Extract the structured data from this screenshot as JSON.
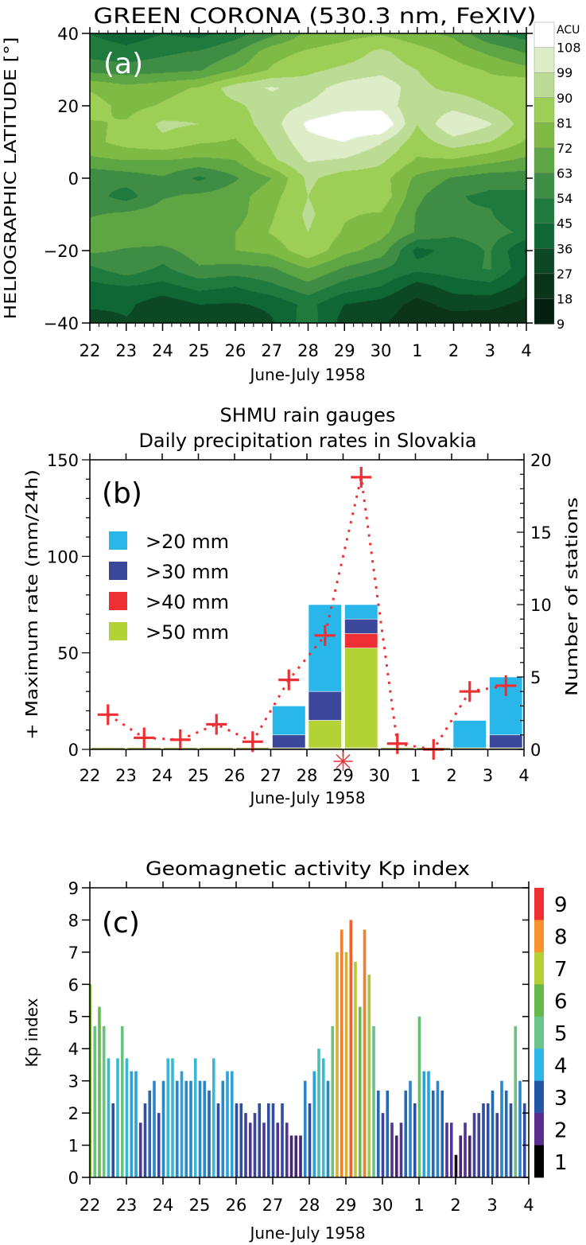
{
  "chart_data": [
    {
      "type": "heatmap",
      "panel_label": "(a)",
      "title": "GREEN CORONA (530.3 nm, FeXIV)",
      "xlabel": "June-July 1958",
      "ylabel": "HELIOGRAPHIC LATITUDE [°]",
      "x_tick_labels": [
        "22",
        "23",
        "24",
        "25",
        "26",
        "27",
        "28",
        "29",
        "30",
        "1",
        "2",
        "3",
        "4"
      ],
      "y_ticks": [
        40,
        20,
        0,
        -20,
        -40
      ],
      "y_tick_labels": [
        "40",
        "20",
        "0",
        "−20",
        "−40"
      ],
      "ylim": [
        -40,
        40
      ],
      "colorbar": {
        "unit": "ACU",
        "levels": [
          9,
          18,
          27,
          36,
          45,
          54,
          63,
          72,
          81,
          90,
          99,
          108
        ],
        "level_labels": [
          "108",
          "99",
          "90",
          "81",
          "72",
          "63",
          "54",
          "45",
          "36",
          "27",
          "18",
          "9"
        ],
        "colors": [
          "#000a05",
          "#04200f",
          "#0c3419",
          "#0d4825",
          "#0e6734",
          "#1f7a3d",
          "#3f8d45",
          "#5ea544",
          "#7fba45",
          "#9dcf57",
          "#bcdc95",
          "#dcedc8",
          "#ffffff"
        ]
      },
      "latitudes": [
        40,
        35,
        30,
        25,
        20,
        15,
        10,
        5,
        0,
        -5,
        -10,
        -15,
        -20,
        -25,
        -30,
        -35,
        -40
      ],
      "values": [
        [
          45,
          40,
          45,
          42,
          50,
          60,
          75,
          78,
          80,
          75,
          70,
          55,
          50
        ],
        [
          50,
          48,
          52,
          55,
          62,
          78,
          82,
          85,
          92,
          85,
          78,
          70,
          62
        ],
        [
          60,
          58,
          60,
          62,
          72,
          82,
          88,
          92,
          95,
          90,
          85,
          80,
          75
        ],
        [
          80,
          75,
          78,
          82,
          95,
          100,
          95,
          103,
          108,
          92,
          88,
          85,
          90
        ],
        [
          85,
          78,
          82,
          86,
          88,
          95,
          100,
          105,
          105,
          92,
          96,
          90,
          82
        ],
        [
          80,
          82,
          92,
          90,
          85,
          95,
          110,
          115,
          118,
          90,
          108,
          100,
          85
        ],
        [
          78,
          85,
          88,
          82,
          80,
          92,
          105,
          108,
          100,
          85,
          95,
          90,
          80
        ],
        [
          70,
          72,
          72,
          70,
          72,
          88,
          100,
          98,
          92,
          80,
          80,
          75,
          70
        ],
        [
          55,
          58,
          62,
          52,
          62,
          72,
          92,
          85,
          85,
          70,
          62,
          58,
          58
        ],
        [
          58,
          50,
          62,
          65,
          68,
          78,
          90,
          82,
          88,
          65,
          55,
          52,
          52
        ],
        [
          62,
          65,
          68,
          70,
          68,
          80,
          92,
          82,
          80,
          62,
          55,
          55,
          45
        ],
        [
          68,
          70,
          72,
          68,
          72,
          82,
          90,
          80,
          75,
          62,
          56,
          58,
          52
        ],
        [
          65,
          62,
          60,
          68,
          72,
          75,
          88,
          75,
          68,
          42,
          48,
          55,
          35
        ],
        [
          52,
          60,
          52,
          62,
          60,
          62,
          72,
          62,
          55,
          48,
          50,
          55,
          38
        ],
        [
          42,
          45,
          42,
          48,
          45,
          52,
          60,
          50,
          45,
          32,
          40,
          42,
          32
        ],
        [
          38,
          38,
          30,
          36,
          35,
          38,
          48,
          36,
          32,
          24,
          30,
          30,
          24
        ],
        [
          30,
          35,
          32,
          30,
          28,
          35,
          50,
          32,
          28,
          22,
          22,
          20,
          18
        ]
      ]
    },
    {
      "type": "bar",
      "panel_label": "(b)",
      "title": "SHMU rain gauges",
      "subtitle": "Daily precipitation rates in Slovakia",
      "xlabel": "June-July 1958",
      "ylabel": "+ Maximum rate (mm/24h)",
      "ylabel_right": "Number of stations",
      "x_tick_labels": [
        "22",
        "23",
        "24",
        "25",
        "26",
        "27",
        "28",
        "29",
        "30",
        "1",
        "2",
        "3",
        "4"
      ],
      "y_ticks": [
        0,
        50,
        100,
        150
      ],
      "y_tick_labels": [
        "0",
        "50",
        "100",
        "150"
      ],
      "y2_ticks": [
        0,
        5,
        10,
        15,
        20
      ],
      "y2_tick_labels": [
        "0",
        "5",
        "10",
        "15",
        "20"
      ],
      "ylim": [
        0,
        150
      ],
      "y2lim": [
        0,
        20
      ],
      "legend_position": "top-left",
      "categories": [
        "22",
        "23",
        "24",
        "25",
        "26",
        "27",
        "28",
        "29",
        "30",
        "1",
        "2",
        "3"
      ],
      "series": [
        {
          "name": ">20 mm",
          "color": "#29b6e8",
          "values": [
            0,
            0,
            0,
            0,
            0,
            3,
            10,
            10,
            0,
            0,
            2,
            5
          ]
        },
        {
          "name": ">30 mm",
          "color": "#3b479b",
          "values": [
            0,
            0,
            0,
            0,
            0,
            1,
            4,
            9,
            0,
            0,
            0,
            1
          ]
        },
        {
          "name": ">40 mm",
          "color": "#ee2f33",
          "values": [
            0,
            0,
            0,
            0,
            0,
            0,
            2,
            8,
            0,
            0,
            0,
            0
          ]
        },
        {
          "name": ">50 mm",
          "color": "#b3d235",
          "values": [
            0,
            0,
            0,
            0,
            0,
            0,
            2,
            7,
            0,
            0,
            0,
            0
          ]
        }
      ],
      "max_rate": {
        "name": "+ Maximum rate",
        "color": "#ee2f33",
        "values": [
          18,
          6,
          5,
          13,
          4,
          36,
          59,
          141,
          3,
          0,
          30,
          33
        ]
      },
      "marker_label": "29",
      "marker_symbol": "✳"
    },
    {
      "type": "bar",
      "panel_label": "(c)",
      "title": "Geomagnetic activity Kp index",
      "xlabel": "June-July 1958",
      "ylabel": "Kp index",
      "x_tick_labels": [
        "22",
        "23",
        "24",
        "25",
        "26",
        "27",
        "28",
        "29",
        "30",
        "1",
        "2",
        "3",
        "4"
      ],
      "y_ticks": [
        0,
        1,
        2,
        3,
        4,
        5,
        6,
        7,
        8,
        9
      ],
      "y_tick_labels": [
        "0",
        "1",
        "2",
        "3",
        "4",
        "5",
        "6",
        "7",
        "8",
        "9"
      ],
      "ylim": [
        0,
        9
      ],
      "colorbar": {
        "labels": [
          "9",
          "8",
          "7",
          "6",
          "5",
          "4",
          "3",
          "2",
          "1"
        ],
        "colors": [
          "#ee3030",
          "#f7922e",
          "#b5d037",
          "#66b84a",
          "#6bc48c",
          "#2db5e8",
          "#2456a5",
          "#5b2d90",
          "#000000"
        ]
      },
      "interval_hours": 3,
      "values": [
        6.0,
        4.7,
        5.3,
        4.7,
        3.7,
        2.3,
        3.7,
        4.7,
        3.7,
        3.3,
        3.3,
        1.7,
        2.3,
        2.7,
        3.0,
        2.0,
        3.0,
        3.7,
        3.7,
        3.0,
        3.3,
        3.0,
        3.0,
        3.7,
        3.0,
        3.0,
        2.7,
        3.7,
        2.3,
        3.0,
        3.3,
        3.3,
        2.3,
        2.3,
        2.0,
        1.7,
        2.0,
        2.3,
        1.7,
        2.3,
        2.3,
        1.7,
        2.3,
        1.7,
        1.3,
        1.3,
        1.3,
        3.0,
        2.3,
        3.3,
        4.0,
        3.7,
        3.0,
        4.7,
        7.0,
        7.7,
        7.0,
        8.0,
        6.7,
        5.3,
        7.7,
        6.3,
        4.7,
        2.7,
        2.0,
        2.7,
        1.7,
        1.3,
        1.7,
        2.7,
        3.0,
        2.3,
        5.0,
        3.3,
        3.3,
        2.7,
        3.0,
        2.7,
        1.7,
        1.7,
        0.7,
        1.3,
        1.7,
        1.3,
        2.0,
        2.0,
        2.3,
        2.3,
        2.7,
        2.0,
        3.0,
        2.7,
        2.3,
        4.7,
        3.0,
        2.3
      ]
    }
  ]
}
